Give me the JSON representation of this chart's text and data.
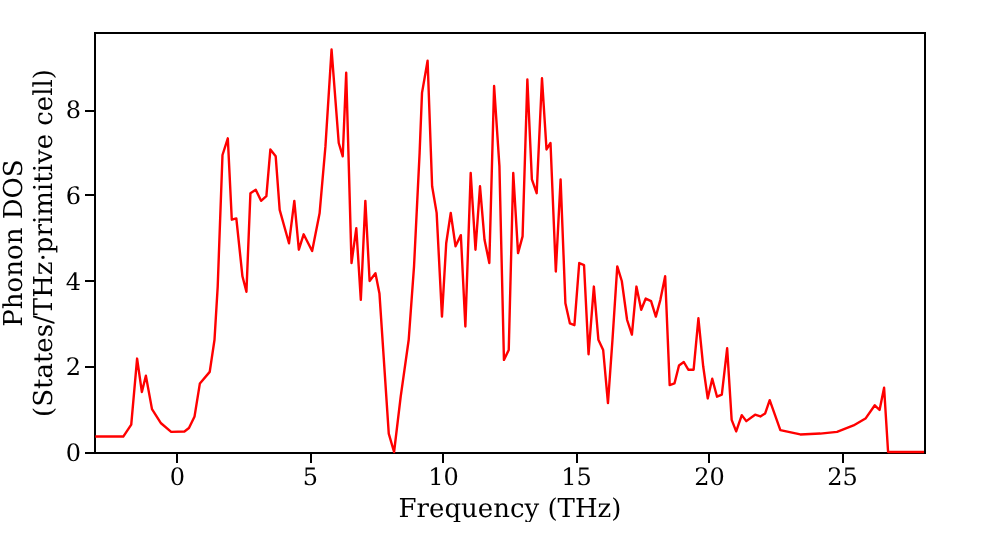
{
  "chart_data": {
    "type": "line",
    "xlabel": "Frequency (THz)",
    "ylabel": "Phonon DOS\n(States/THz·primitive cell)",
    "xlim": [
      -3.1,
      28.1
    ],
    "ylim": [
      0,
      9.8
    ],
    "xticks": [
      0,
      5,
      10,
      15,
      20,
      25
    ],
    "yticks": [
      0,
      2,
      4,
      6,
      8
    ],
    "grid": false,
    "line_style": "solid",
    "marker": "none",
    "series": [
      {
        "color": "#ff0000",
        "x": [
          -3.05,
          -2.0,
          -1.7,
          -1.48,
          -1.3,
          -1.15,
          -0.92,
          -0.58,
          -0.2,
          0.3,
          0.47,
          0.68,
          0.88,
          1.25,
          1.43,
          1.55,
          1.73,
          1.93,
          2.08,
          2.25,
          2.48,
          2.63,
          2.78,
          2.98,
          3.18,
          3.38,
          3.53,
          3.73,
          3.88,
          4.23,
          4.43,
          4.6,
          4.78,
          5.1,
          5.38,
          5.6,
          5.83,
          6.1,
          6.25,
          6.38,
          6.58,
          6.76,
          6.93,
          7.1,
          7.26,
          7.48,
          7.63,
          7.98,
          8.18,
          8.43,
          8.73,
          8.93,
          9.14,
          9.23,
          9.44,
          9.61,
          9.78,
          9.98,
          10.14,
          10.31,
          10.49,
          10.69,
          10.86,
          11.06,
          11.24,
          11.41,
          11.58,
          11.76,
          11.94,
          12.14,
          12.31,
          12.49,
          12.66,
          12.84,
          13.01,
          13.19,
          13.36,
          13.54,
          13.74,
          13.91,
          14.06,
          14.26,
          14.44,
          14.62,
          14.79,
          14.96,
          15.14,
          15.32,
          15.49,
          15.69,
          15.86,
          16.04,
          16.22,
          16.39,
          16.57,
          16.74,
          16.94,
          17.12,
          17.29,
          17.47,
          17.64,
          17.84,
          18.02,
          18.19,
          18.37,
          18.54,
          18.72,
          18.89,
          19.07,
          19.24,
          19.44,
          19.62,
          19.8,
          19.97,
          20.14,
          20.32,
          20.5,
          20.7,
          20.87,
          21.04,
          21.25,
          21.42,
          21.75,
          21.95,
          22.13,
          22.3,
          22.7,
          23.45,
          24.2,
          24.83,
          25.45,
          25.9,
          26.25,
          26.43,
          26.6,
          26.75,
          28.1
        ],
        "values": [
          0.36,
          0.36,
          0.64,
          2.18,
          1.4,
          1.78,
          1.0,
          0.67,
          0.47,
          0.48,
          0.56,
          0.83,
          1.6,
          1.87,
          2.62,
          3.86,
          6.93,
          7.32,
          5.42,
          5.45,
          4.1,
          3.74,
          6.04,
          6.12,
          5.86,
          5.97,
          7.06,
          6.9,
          5.65,
          4.87,
          5.86,
          4.72,
          5.08,
          4.69,
          5.57,
          7.13,
          9.39,
          7.21,
          6.9,
          8.85,
          4.41,
          5.22,
          3.55,
          5.86,
          3.99,
          4.17,
          3.7,
          0.43,
          0.0,
          1.3,
          2.62,
          4.33,
          6.98,
          8.38,
          9.13,
          6.2,
          5.58,
          3.16,
          4.87,
          5.58,
          4.8,
          5.06,
          2.93,
          6.51,
          4.72,
          6.2,
          4.95,
          4.41,
          8.54,
          6.67,
          2.15,
          2.38,
          6.51,
          4.64,
          5.03,
          8.69,
          6.36,
          6.04,
          8.72,
          7.06,
          7.21,
          4.21,
          6.36,
          3.47,
          3.0,
          2.96,
          4.41,
          4.36,
          2.28,
          3.86,
          2.62,
          2.38,
          1.14,
          2.62,
          4.33,
          3.99,
          3.08,
          2.74,
          3.86,
          3.32,
          3.58,
          3.52,
          3.16,
          3.55,
          4.1,
          1.56,
          1.6,
          2.02,
          2.1,
          1.92,
          1.92,
          3.12,
          2.0,
          1.25,
          1.71,
          1.29,
          1.34,
          2.42,
          0.75,
          0.48,
          0.86,
          0.72,
          0.87,
          0.83,
          0.9,
          1.21,
          0.51,
          0.41,
          0.43,
          0.47,
          0.62,
          0.78,
          1.09,
          0.98,
          1.5,
          0.0,
          0.0
        ]
      }
    ]
  }
}
